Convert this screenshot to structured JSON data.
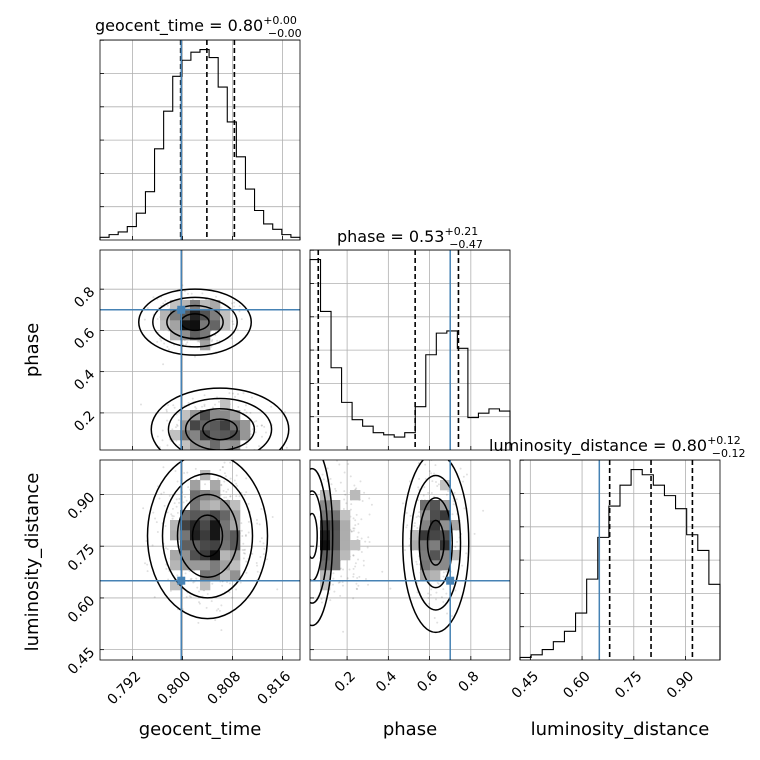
{
  "chart_data": {
    "type": "corner",
    "parameters": [
      "geocent_time",
      "phase",
      "luminosity_distance"
    ],
    "truths": {
      "geocent_time": 0.7998,
      "phase": 0.7,
      "luminosity_distance": 0.65
    },
    "titles": [
      {
        "param": "geocent_time",
        "median": "0.80",
        "plus": "+0.00",
        "minus": "−0.00"
      },
      {
        "param": "phase",
        "median": "0.53",
        "plus": "+0.21",
        "minus": "−0.47"
      },
      {
        "param": "luminosity_distance",
        "median": "0.80",
        "plus": "+0.12",
        "minus": "−0.12"
      }
    ],
    "xlabels": {
      "geocent_time": "geocent_time",
      "phase": "phase",
      "luminosity_distance": "luminosity_distance"
    },
    "ylabels": {
      "phase": "phase",
      "luminosity_distance": "luminosity_distance"
    },
    "ranges": {
      "geocent_time": [
        0.7868,
        0.8188
      ],
      "phase": [
        0.02,
        0.99
      ],
      "luminosity_distance": [
        0.42,
        1.0
      ]
    },
    "ticks": {
      "geocent_time": {
        "values": [
          0.792,
          0.8,
          0.808,
          0.816
        ],
        "labels": [
          "0.792",
          "0.800",
          "0.808",
          "0.816"
        ]
      },
      "phase": {
        "values": [
          0.2,
          0.4,
          0.6,
          0.8
        ],
        "labels": [
          "0.2",
          "0.4",
          "0.6",
          "0.8"
        ]
      },
      "luminosity_distance": {
        "values": [
          0.45,
          0.6,
          0.75,
          0.9
        ],
        "labels": [
          "0.45",
          "0.60",
          "0.75",
          "0.90"
        ]
      }
    },
    "quantiles": {
      "geocent_time": [
        0.7997,
        0.8039,
        0.8083
      ],
      "phase": [
        0.06,
        0.53,
        0.74
      ],
      "luminosity_distance": [
        0.68,
        0.8,
        0.92
      ]
    },
    "hist_geocent_time": [
      1,
      2,
      3,
      5,
      10,
      18,
      34,
      48,
      61,
      67,
      70,
      71,
      68,
      57,
      44,
      31,
      19,
      11,
      6,
      4,
      2,
      1
    ],
    "hist_phase": [
      88,
      64,
      38,
      22,
      14,
      11,
      8,
      7,
      6,
      8,
      20,
      44,
      54,
      55,
      47,
      15,
      17,
      19,
      18
    ],
    "hist_luminosity_distance": [
      1,
      2,
      4,
      7,
      11,
      18,
      31,
      47,
      59,
      67,
      73,
      71,
      67,
      63,
      58,
      48,
      42,
      29
    ]
  }
}
